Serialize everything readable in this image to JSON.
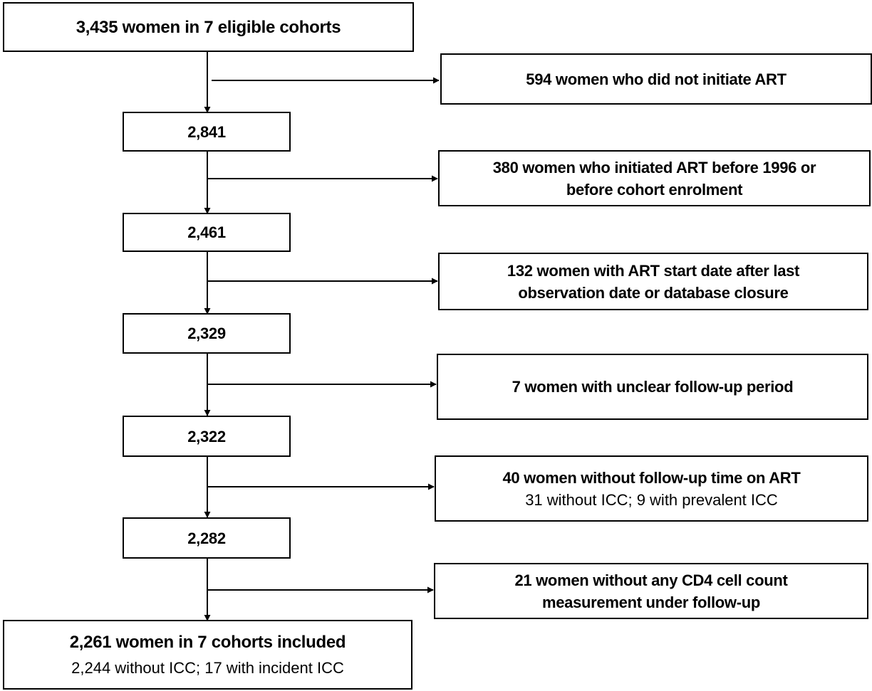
{
  "flow": {
    "start": {
      "title": "3,435 women in 7 eligible cohorts"
    },
    "counts": [
      "2,841",
      "2,461",
      "2,329",
      "2,322",
      "2,282"
    ],
    "exclusions": [
      {
        "line1": "594 women who did not initiate ART",
        "line2": "",
        "detail": ""
      },
      {
        "line1": "380 women who initiated ART before 1996 or",
        "line2": "before cohort enrolment",
        "detail": ""
      },
      {
        "line1": "132 women with ART start date after last",
        "line2": "observation date or database closure",
        "detail": ""
      },
      {
        "line1": "7 women with unclear follow-up period",
        "line2": "",
        "detail": ""
      },
      {
        "line1": "40 women without follow-up time on ART",
        "line2": "",
        "detail": "31 without  ICC; 9 with prevalent ICC"
      },
      {
        "line1": "21 women without any CD4 cell count",
        "line2": "measurement under follow-up",
        "detail": ""
      }
    ],
    "final": {
      "title": "2,261 women in 7 cohorts included",
      "detail": "2,244 without ICC; 17 with incident ICC"
    }
  }
}
